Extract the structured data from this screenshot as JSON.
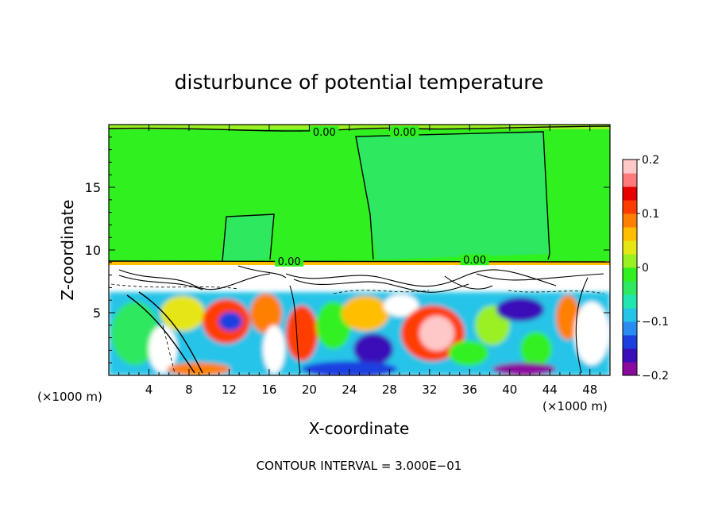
{
  "chart_data": {
    "type": "heatmap",
    "title": "disturbunce of potential temperature",
    "xlabel": "X-coordinate",
    "ylabel": "Z-coordinate",
    "x_unit_left": "(×1000 m)",
    "x_unit_right": "(×1000 m)",
    "xlim": [
      0,
      50
    ],
    "ylim": [
      0,
      20
    ],
    "x_ticks": [
      4,
      8,
      12,
      16,
      20,
      24,
      28,
      32,
      36,
      40,
      44,
      48
    ],
    "y_ticks": [
      5,
      10,
      15
    ],
    "colorbar": {
      "min": -0.2,
      "max": 0.2,
      "ticks": [
        {
          "value": 0.2,
          "label": "0.2"
        },
        {
          "value": 0.1,
          "label": "0.1"
        },
        {
          "value": 0.0,
          "label": "0"
        },
        {
          "value": -0.1,
          "label": "−0.1"
        },
        {
          "value": -0.2,
          "label": "−0.2"
        }
      ],
      "colors": [
        "#8b0a9e",
        "#3a0fb8",
        "#1c3fe0",
        "#2a8cf0",
        "#26c4e8",
        "#22e6b0",
        "#2ee860",
        "#30f020",
        "#9af020",
        "#e6e614",
        "#ffbe00",
        "#ff7f00",
        "#ff3c00",
        "#e60000",
        "#ff7a7a",
        "#ffc8c8"
      ]
    },
    "contour_labels": [
      {
        "x": 21.5,
        "y": 19.3,
        "text": "0.00"
      },
      {
        "x": 29.5,
        "y": 19.3,
        "text": "0.00"
      },
      {
        "x": 18.0,
        "y": 9.0,
        "text": "0.00"
      },
      {
        "x": 36.5,
        "y": 9.1,
        "text": "0.00"
      }
    ],
    "contour_interval": "CONTOUR INTERVAL = 3.000E−01"
  }
}
